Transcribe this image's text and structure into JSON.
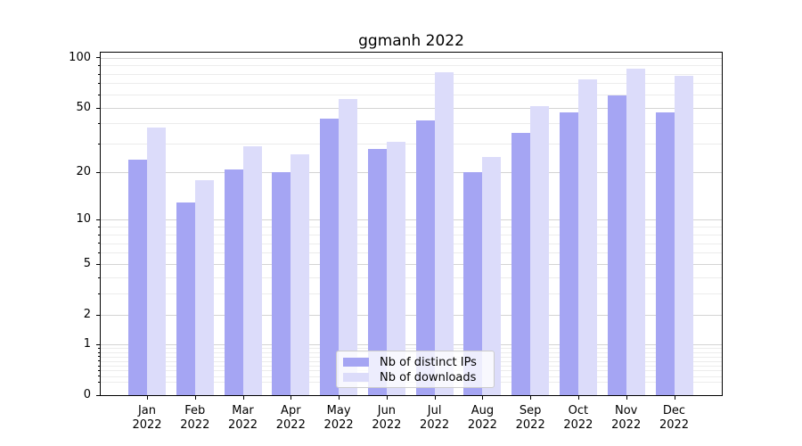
{
  "chart_data": {
    "type": "bar",
    "title": "ggmanh 2022",
    "categories": [
      "Jan 2022",
      "Feb 2022",
      "Mar 2022",
      "Apr 2022",
      "May 2022",
      "Jun 2022",
      "Jul 2022",
      "Aug 2022",
      "Sep 2022",
      "Oct 2022",
      "Nov 2022",
      "Dec 2022"
    ],
    "series": [
      {
        "name": "Nb of distinct IPs",
        "color": "#a5a5f3",
        "values": [
          24,
          13,
          21,
          20,
          43,
          28,
          42,
          20,
          35,
          47,
          59,
          47
        ]
      },
      {
        "name": "Nb of downloads",
        "color": "#dcdcfa",
        "values": [
          38,
          18,
          29,
          26,
          56,
          31,
          82,
          25,
          51,
          74,
          86,
          78
        ]
      }
    ],
    "xlabel": "",
    "ylabel": "",
    "yscale": "log10(1+x)",
    "yticks": [
      0,
      1,
      2,
      5,
      10,
      20,
      50,
      100
    ],
    "yticks_minor": [
      0.2,
      0.3,
      0.4,
      0.5,
      0.6,
      0.7,
      0.8,
      0.9,
      3,
      4,
      6,
      7,
      8,
      9,
      30,
      40,
      60,
      70,
      80,
      90
    ],
    "ylim": [
      0,
      107
    ],
    "grid": "on",
    "legend_position": "lower center inside plot"
  },
  "colors": {
    "spine": "#000000",
    "grid_major": "#d4d4d4",
    "grid_minor": "#ececec",
    "text": "#000000",
    "legend_border": "#cccccc",
    "legend_background": "rgba(255,255,255,0.8)"
  }
}
